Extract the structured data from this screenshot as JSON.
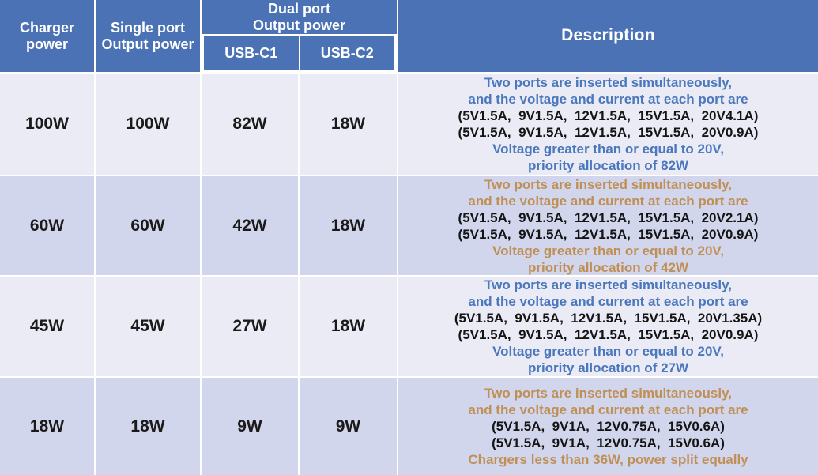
{
  "colors": {
    "header_bg": "#4a72b4",
    "header_text": "#ffffff",
    "row_light_bg": "#eaebf4",
    "row_dark_bg": "#d1d6ec",
    "accent_blue": "#4a77bd",
    "accent_tan": "#c08f56",
    "value_text": "#1a1a1a",
    "grid_line": "#ffffff"
  },
  "chart_data": {
    "type": "table",
    "header": {
      "charger_power": "Charger\npower",
      "single_port": "Single port\nOutput power",
      "dual_port": "Dual port\nOutput power",
      "usb_c1": "USB-C1",
      "usb_c2": "USB-C2",
      "description": "Description"
    },
    "rows": [
      {
        "charger_power": "100W",
        "single_port_output": "100W",
        "usb_c1": "82W",
        "usb_c2": "18W",
        "accent": "blue",
        "description_lines": [
          "Two ports are inserted simultaneously,",
          "and the voltage and current at each port are",
          "(5V1.5A,  9V1.5A,  12V1.5A,  15V1.5A,  20V4.1A)",
          "(5V1.5A,  9V1.5A,  12V1.5A,  15V1.5A,  20V0.9A)",
          "Voltage greater than or equal to 20V,",
          "priority allocation of 82W"
        ]
      },
      {
        "charger_power": "60W",
        "single_port_output": "60W",
        "usb_c1": "42W",
        "usb_c2": "18W",
        "accent": "tan",
        "description_lines": [
          "Two ports are inserted simultaneously,",
          "and the voltage and current at each port are",
          "(5V1.5A,  9V1.5A,  12V1.5A,  15V1.5A,  20V2.1A)",
          "(5V1.5A,  9V1.5A,  12V1.5A,  15V1.5A,  20V0.9A)",
          "Voltage greater than or equal to 20V,",
          "priority allocation of 42W"
        ]
      },
      {
        "charger_power": "45W",
        "single_port_output": "45W",
        "usb_c1": "27W",
        "usb_c2": "18W",
        "accent": "blue",
        "description_lines": [
          "Two ports are inserted simultaneously,",
          "and the voltage and current at each port are",
          "(5V1.5A,  9V1.5A,  12V1.5A,  15V1.5A,  20V1.35A)",
          "(5V1.5A,  9V1.5A,  12V1.5A,  15V1.5A,  20V0.9A)",
          "Voltage greater than or equal to 20V,",
          "priority allocation of 27W"
        ]
      },
      {
        "charger_power": "18W",
        "single_port_output": "18W",
        "usb_c1": "9W",
        "usb_c2": "9W",
        "accent": "tan",
        "description_lines": [
          "Two ports are inserted simultaneously,",
          "and the voltage and current at each port are",
          "(5V1.5A,  9V1A,  12V0.75A,  15V0.6A)",
          "(5V1.5A,  9V1A,  12V0.75A,  15V0.6A)",
          "Chargers less than 36W, power split equally"
        ]
      }
    ]
  }
}
